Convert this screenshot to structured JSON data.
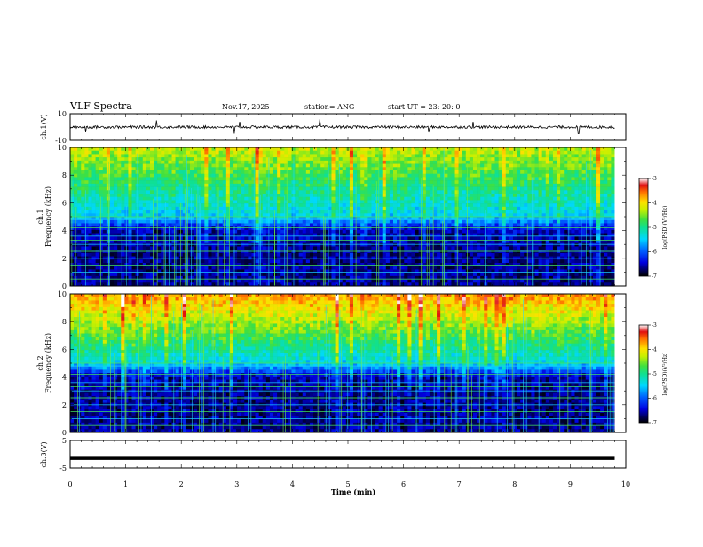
{
  "header": {
    "title": "VLF Spectra",
    "date": "Nov.17, 2025",
    "station": "station= ANG",
    "start": "start  UT  =   23: 20: 0"
  },
  "panels": {
    "ch1_wave": {
      "ylabel": "ch.1(V)",
      "ymax_label": "10",
      "ymin_label": "-10"
    },
    "ch1_spec": {
      "ylabel_line1": "ch.1",
      "ylabel_line2": "Frequency  (kHz)"
    },
    "ch2_spec": {
      "ylabel_line1": "ch.2",
      "ylabel_line2": "Frequency  (kHz)"
    },
    "ch3_wave": {
      "ylabel": "ch.3(V)",
      "ymax_label": "5",
      "ymin_label": "-5"
    }
  },
  "colorbar": {
    "label": "log(PSD)(V²/Hz)",
    "ticks": [
      "-3",
      "-4",
      "-5",
      "-6",
      "-7"
    ]
  },
  "xaxis": {
    "label": "Time  (min)",
    "ticks": [
      "0",
      "1",
      "2",
      "3",
      "4",
      "5",
      "6",
      "7",
      "8",
      "9",
      "10"
    ]
  },
  "freq_ticks": [
    "0",
    "2",
    "4",
    "6",
    "8",
    "10"
  ],
  "chart_data": [
    {
      "type": "line",
      "name": "ch.1 waveform",
      "xlabel": "Time (min)",
      "ylabel": "ch.1(V)",
      "xlim": [
        0,
        10
      ],
      "ylim": [
        -10,
        10
      ],
      "data_end_min": 9.8,
      "baseline_value": 0,
      "noise_amplitude": 1,
      "spikes": [
        {
          "x": 0.28,
          "y": -4
        },
        {
          "x": 1.55,
          "y": 5
        },
        {
          "x": 2.95,
          "y": -5
        },
        {
          "x": 3.05,
          "y": 4
        },
        {
          "x": 4.5,
          "y": 6
        },
        {
          "x": 6.45,
          "y": -4
        },
        {
          "x": 7.25,
          "y": 4
        },
        {
          "x": 9.15,
          "y": -5
        }
      ]
    },
    {
      "type": "heatmap",
      "name": "ch.1 spectrogram",
      "xlabel": "Time (min)",
      "ylabel": "Frequency (kHz)",
      "xlim": [
        0,
        10
      ],
      "ylim": [
        0,
        10
      ],
      "data_end_min": 9.8,
      "zlim": [
        -7,
        -3
      ],
      "z_label": "log(PSD)(V²/Hz)",
      "z_at_10kHz": -4.4,
      "z_at_5kHz": -5.6,
      "z_below_4kHz": -6.7,
      "harmonic_lines_kHz": [
        0.5,
        1.0,
        1.5,
        2.0,
        2.5,
        3.0,
        3.3,
        3.6,
        4.2,
        4.8,
        5.0
      ]
    },
    {
      "type": "heatmap",
      "name": "ch.2 spectrogram",
      "xlabel": "Time (min)",
      "ylabel": "Frequency (kHz)",
      "xlim": [
        0,
        10
      ],
      "ylim": [
        0,
        10
      ],
      "data_end_min": 9.8,
      "zlim": [
        -7,
        -3
      ],
      "z_label": "log(PSD)(V²/Hz)",
      "z_at_10kHz": -3.8,
      "z_at_5kHz": -5.5,
      "z_below_4kHz": -6.7,
      "harmonic_lines_kHz": [
        0.5,
        1.0,
        1.5,
        2.0,
        2.5,
        3.0,
        3.3,
        3.6,
        4.2,
        4.8,
        5.0
      ]
    },
    {
      "type": "line",
      "name": "ch.3 waveform",
      "xlabel": "Time (min)",
      "ylabel": "ch.3(V)",
      "xlim": [
        0,
        10
      ],
      "ylim": [
        -5,
        5
      ],
      "data_end_min": 9.8,
      "constant_value": -1.5
    }
  ]
}
